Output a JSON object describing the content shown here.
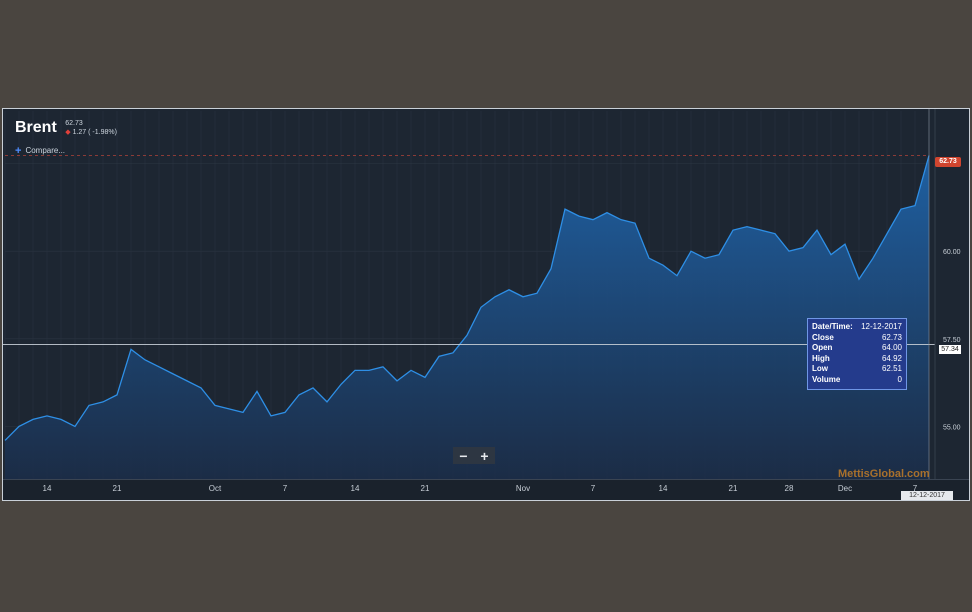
{
  "header": {
    "title": "Brent",
    "last": "62.73",
    "change": "1.27 ( -1.98%)",
    "compare_label": "Compare..."
  },
  "zoom": {
    "minus": "−",
    "plus": "+"
  },
  "tooltip": {
    "rows": [
      {
        "k": "Date/Time:",
        "v": "12-12-2017"
      },
      {
        "k": "Close",
        "v": "62.73"
      },
      {
        "k": "Open",
        "v": "64.00"
      },
      {
        "k": "High",
        "v": "64.92"
      },
      {
        "k": "Low",
        "v": "62.51"
      },
      {
        "k": "Volume",
        "v": "0"
      }
    ]
  },
  "watermark": "MettisGlobal.com",
  "crosshair_date": "12-12-2017",
  "price_badge": "62.73",
  "crosshair_price": "57.34",
  "colors": {
    "line": "#2e8fe6",
    "down": "#e0403a",
    "badge": "#d0452f",
    "tooltip_bg": "#243b8c"
  },
  "chart_data": {
    "type": "area",
    "title": "Brent",
    "x": [
      "2017-09-11",
      "2017-09-12",
      "2017-09-13",
      "2017-09-14",
      "2017-09-15",
      "2017-09-18",
      "2017-09-19",
      "2017-09-20",
      "2017-09-21",
      "2017-09-22",
      "2017-09-25",
      "2017-09-26",
      "2017-09-27",
      "2017-09-28",
      "2017-09-29",
      "2017-10-02",
      "2017-10-03",
      "2017-10-04",
      "2017-10-05",
      "2017-10-06",
      "2017-10-09",
      "2017-10-10",
      "2017-10-11",
      "2017-10-12",
      "2017-10-13",
      "2017-10-16",
      "2017-10-17",
      "2017-10-18",
      "2017-10-19",
      "2017-10-20",
      "2017-10-23",
      "2017-10-24",
      "2017-10-25",
      "2017-10-26",
      "2017-10-27",
      "2017-10-30",
      "2017-10-31",
      "2017-11-01",
      "2017-11-02",
      "2017-11-03",
      "2017-11-06",
      "2017-11-07",
      "2017-11-08",
      "2017-11-09",
      "2017-11-10",
      "2017-11-13",
      "2017-11-14",
      "2017-11-15",
      "2017-11-16",
      "2017-11-17",
      "2017-11-20",
      "2017-11-21",
      "2017-11-22",
      "2017-11-23",
      "2017-11-24",
      "2017-11-27",
      "2017-11-28",
      "2017-11-29",
      "2017-11-30",
      "2017-12-01",
      "2017-12-04",
      "2017-12-05",
      "2017-12-06",
      "2017-12-07",
      "2017-12-08",
      "2017-12-11",
      "2017-12-12"
    ],
    "values": [
      54.6,
      55.0,
      55.2,
      55.3,
      55.2,
      55.0,
      55.6,
      55.7,
      55.9,
      57.2,
      56.9,
      56.7,
      56.5,
      56.3,
      56.1,
      55.6,
      55.5,
      55.4,
      56.0,
      55.3,
      55.4,
      55.9,
      56.1,
      55.7,
      56.2,
      56.6,
      56.6,
      56.7,
      56.3,
      56.6,
      56.4,
      57.0,
      57.1,
      57.6,
      58.4,
      58.7,
      58.9,
      58.7,
      58.8,
      59.5,
      61.2,
      61.0,
      60.9,
      61.1,
      60.9,
      60.8,
      59.8,
      59.6,
      59.3,
      60.0,
      59.8,
      59.9,
      60.6,
      60.7,
      60.6,
      60.5,
      60.0,
      60.1,
      60.6,
      59.9,
      60.2,
      59.2,
      59.8,
      60.5,
      61.2,
      61.3,
      62.73
    ],
    "x_ticks": [
      "14",
      "21",
      "Oct",
      "7",
      "14",
      "21",
      "Nov",
      "7",
      "14",
      "21",
      "28",
      "Dec",
      "7"
    ],
    "y_ticks": [
      "55.00",
      "57.50",
      "60.00",
      "62.50"
    ],
    "ylim": [
      53.5,
      64.0
    ],
    "reference_line": 62.73,
    "crosshair_y": 57.34,
    "grid": true
  }
}
